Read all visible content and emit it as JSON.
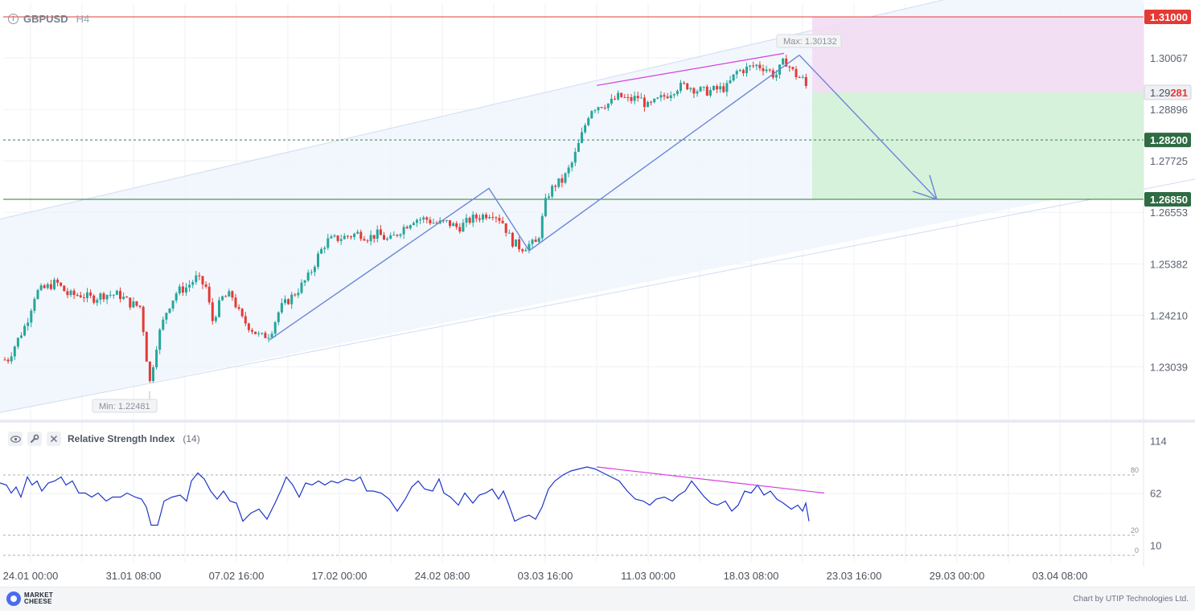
{
  "header": {
    "symbol": "GBPUSD",
    "timeframe": "H4"
  },
  "rsi_panel": {
    "name": "Relative Strength Index",
    "param": "(14)"
  },
  "footer": {
    "brand_line1": "MARKET",
    "brand_line2": "CHEESE",
    "credit": "Chart by UTIP Technologies Ltd."
  },
  "colors": {
    "up": "#26a69a",
    "down": "#e53935",
    "resistance": "#e53935",
    "support": "#2e7d32",
    "channel_fill": "#eef4fc",
    "wave": "#6a86d8",
    "divergence": "#d63fe0",
    "rsi_line": "#1f35c9",
    "sell_zone": "#f3dcf3",
    "target_zone": "#d3f1d6"
  },
  "chart_data": [
    {
      "type": "candlestick",
      "symbol": "GBPUSD",
      "timeframe": "H4",
      "x_ticks": [
        "24.01 00:00",
        "31.01 08:00",
        "07.02 16:00",
        "17.02 00:00",
        "24.02 08:00",
        "03.03 16:00",
        "11.03 00:00",
        "18.03 08:00",
        "23.03 16:00",
        "29.03 00:00",
        "03.04 08:00"
      ],
      "y_ticks": [
        "1.31000",
        "1.30067",
        "1.29281",
        "1.28896",
        "1.28200",
        "1.27725",
        "1.26850",
        "1.26553",
        "1.25382",
        "1.24210",
        "1.23039"
      ],
      "ylim": [
        1.22,
        1.312
      ],
      "grid": true,
      "close_path": [
        [
          0,
          1.2325
        ],
        [
          9,
          1.2318
        ],
        [
          20,
          1.2358
        ],
        [
          33,
          1.2404
        ],
        [
          44,
          1.2472
        ],
        [
          55,
          1.2482
        ],
        [
          70,
          1.2496
        ],
        [
          85,
          1.2467
        ],
        [
          100,
          1.2468
        ],
        [
          115,
          1.2459
        ],
        [
          130,
          1.2469
        ],
        [
          148,
          1.2468
        ],
        [
          162,
          1.2448
        ],
        [
          175,
          1.244
        ],
        [
          186,
          1.2265
        ],
        [
          196,
          1.2368
        ],
        [
          208,
          1.2436
        ],
        [
          220,
          1.2475
        ],
        [
          232,
          1.2485
        ],
        [
          244,
          1.2506
        ],
        [
          256,
          1.2486
        ],
        [
          264,
          1.2408
        ],
        [
          276,
          1.246
        ],
        [
          288,
          1.2468
        ],
        [
          300,
          1.2414
        ],
        [
          312,
          1.2392
        ],
        [
          324,
          1.2371
        ],
        [
          336,
          1.238
        ],
        [
          348,
          1.2436
        ],
        [
          360,
          1.2458
        ],
        [
          372,
          1.2482
        ],
        [
          384,
          1.251
        ],
        [
          396,
          1.2558
        ],
        [
          406,
          1.259
        ],
        [
          418,
          1.2595
        ],
        [
          432,
          1.2601
        ],
        [
          446,
          1.2608
        ],
        [
          458,
          1.2598
        ],
        [
          470,
          1.2606
        ],
        [
          484,
          1.259
        ],
        [
          498,
          1.2615
        ],
        [
          514,
          1.264
        ],
        [
          530,
          1.264
        ],
        [
          542,
          1.263
        ],
        [
          556,
          1.2632
        ],
        [
          570,
          1.262
        ],
        [
          586,
          1.264
        ],
        [
          600,
          1.2648
        ],
        [
          612,
          1.2656
        ],
        [
          624,
          1.2637
        ],
        [
          636,
          1.259
        ],
        [
          648,
          1.2574
        ],
        [
          658,
          1.2582
        ],
        [
          668,
          1.2585
        ],
        [
          680,
          1.2692
        ],
        [
          690,
          1.2718
        ],
        [
          700,
          1.2728
        ],
        [
          712,
          1.277
        ],
        [
          722,
          1.2823
        ],
        [
          734,
          1.289
        ],
        [
          746,
          1.29
        ],
        [
          758,
          1.2903
        ],
        [
          770,
          1.292
        ],
        [
          782,
          1.291
        ],
        [
          794,
          1.2918
        ],
        [
          806,
          1.2895
        ],
        [
          818,
          1.291
        ],
        [
          830,
          1.2924
        ],
        [
          842,
          1.294
        ],
        [
          854,
          1.2944
        ],
        [
          866,
          1.2934
        ],
        [
          878,
          1.293
        ],
        [
          892,
          1.2935
        ],
        [
          904,
          1.294
        ],
        [
          916,
          1.2975
        ],
        [
          928,
          1.2982
        ],
        [
          940,
          1.299
        ],
        [
          952,
          1.2984
        ],
        [
          964,
          1.2965
        ],
        [
          976,
          1.3002
        ],
        [
          988,
          1.297
        ],
        [
          998,
          1.2958
        ],
        [
          1006,
          1.2928
        ]
      ],
      "horizontal_lines": [
        {
          "label": "1.31000",
          "value": 1.31,
          "role": "resistance",
          "style": "solid"
        },
        {
          "label": "1.28200",
          "value": 1.282,
          "role": "intermediate",
          "style": "dashed"
        },
        {
          "label": "1.26850",
          "value": 1.2685,
          "role": "support",
          "style": "solid"
        }
      ],
      "current_price": {
        "label_main": "1.29",
        "label_accent": "281",
        "value": 1.29281
      },
      "annotations": [
        {
          "text": "Max: 1.30132",
          "value": 1.30132,
          "kind": "max"
        },
        {
          "text": "Min: 1.22481",
          "value": 1.22481,
          "kind": "min"
        }
      ],
      "zigzag": [
        [
          335,
          1.2365
        ],
        [
          608,
          1.271
        ],
        [
          658,
          1.2568
        ],
        [
          994,
          1.3013
        ]
      ],
      "forecast_arrow": [
        [
          994,
          1.3013
        ],
        [
          1165,
          1.2685
        ]
      ],
      "channel": {
        "upper": [
          [
            0,
            1.264
          ],
          [
            1200,
            1.315
          ]
        ],
        "lower": [
          [
            0,
            1.22
          ],
          [
            1486,
            1.2731
          ]
        ]
      },
      "trade_zones": [
        {
          "role": "sell",
          "from_value": 1.31,
          "to_value": 1.29281
        },
        {
          "role": "target",
          "from_value": 1.29281,
          "to_value": 1.2685
        }
      ],
      "divergence_line_price": [
        [
          742,
          1.2944
        ],
        [
          975,
          1.3017
        ]
      ]
    },
    {
      "type": "line",
      "name": "Relative Strength Index",
      "period": 14,
      "y_ticks": [
        "114",
        "62",
        "10"
      ],
      "levels": [
        {
          "label": "80",
          "value": 80
        },
        {
          "label": "20",
          "value": 20
        },
        {
          "label": "0",
          "value": 0
        }
      ],
      "ylim": [
        -6,
        122
      ],
      "series": [
        [
          0,
          72
        ],
        [
          8,
          70
        ],
        [
          14,
          62
        ],
        [
          20,
          68
        ],
        [
          26,
          58
        ],
        [
          34,
          78
        ],
        [
          40,
          70
        ],
        [
          46,
          74
        ],
        [
          52,
          64
        ],
        [
          60,
          72
        ],
        [
          68,
          74
        ],
        [
          76,
          78
        ],
        [
          82,
          70
        ],
        [
          90,
          74
        ],
        [
          98,
          62
        ],
        [
          106,
          62
        ],
        [
          114,
          58
        ],
        [
          122,
          62
        ],
        [
          132,
          54
        ],
        [
          140,
          58
        ],
        [
          150,
          58
        ],
        [
          158,
          62
        ],
        [
          168,
          58
        ],
        [
          176,
          56
        ],
        [
          182,
          48
        ],
        [
          188,
          30
        ],
        [
          196,
          30
        ],
        [
          204,
          54
        ],
        [
          214,
          58
        ],
        [
          224,
          60
        ],
        [
          232,
          54
        ],
        [
          238,
          74
        ],
        [
          246,
          82
        ],
        [
          254,
          76
        ],
        [
          262,
          64
        ],
        [
          270,
          56
        ],
        [
          278,
          64
        ],
        [
          286,
          54
        ],
        [
          294,
          52
        ],
        [
          302,
          34
        ],
        [
          312,
          42
        ],
        [
          322,
          46
        ],
        [
          332,
          36
        ],
        [
          342,
          52
        ],
        [
          350,
          66
        ],
        [
          356,
          78
        ],
        [
          364,
          70
        ],
        [
          372,
          58
        ],
        [
          380,
          72
        ],
        [
          388,
          70
        ],
        [
          396,
          74
        ],
        [
          404,
          70
        ],
        [
          412,
          74
        ],
        [
          420,
          72
        ],
        [
          430,
          76
        ],
        [
          440,
          74
        ],
        [
          448,
          78
        ],
        [
          456,
          64
        ],
        [
          464,
          64
        ],
        [
          474,
          62
        ],
        [
          484,
          56
        ],
        [
          494,
          44
        ],
        [
          504,
          56
        ],
        [
          512,
          68
        ],
        [
          520,
          74
        ],
        [
          528,
          66
        ],
        [
          538,
          64
        ],
        [
          546,
          76
        ],
        [
          552,
          62
        ],
        [
          560,
          58
        ],
        [
          570,
          50
        ],
        [
          578,
          62
        ],
        [
          588,
          52
        ],
        [
          596,
          60
        ],
        [
          604,
          62
        ],
        [
          612,
          66
        ],
        [
          620,
          56
        ],
        [
          626,
          64
        ],
        [
          632,
          52
        ],
        [
          640,
          34
        ],
        [
          650,
          38
        ],
        [
          658,
          40
        ],
        [
          666,
          36
        ],
        [
          674,
          48
        ],
        [
          682,
          66
        ],
        [
          690,
          74
        ],
        [
          700,
          80
        ],
        [
          710,
          84
        ],
        [
          720,
          86
        ],
        [
          730,
          88
        ],
        [
          740,
          86
        ],
        [
          750,
          82
        ],
        [
          760,
          78
        ],
        [
          770,
          74
        ],
        [
          780,
          64
        ],
        [
          790,
          56
        ],
        [
          800,
          54
        ],
        [
          808,
          50
        ],
        [
          816,
          56
        ],
        [
          826,
          58
        ],
        [
          836,
          54
        ],
        [
          844,
          60
        ],
        [
          852,
          64
        ],
        [
          860,
          74
        ],
        [
          868,
          66
        ],
        [
          876,
          58
        ],
        [
          884,
          52
        ],
        [
          892,
          50
        ],
        [
          902,
          54
        ],
        [
          910,
          44
        ],
        [
          918,
          50
        ],
        [
          926,
          64
        ],
        [
          934,
          62
        ],
        [
          942,
          70
        ],
        [
          950,
          60
        ],
        [
          958,
          64
        ],
        [
          966,
          56
        ],
        [
          974,
          52
        ],
        [
          984,
          46
        ],
        [
          992,
          50
        ],
        [
          998,
          44
        ],
        [
          1002,
          52
        ],
        [
          1006,
          34
        ]
      ],
      "divergence_line": [
        [
          742,
          88
        ],
        [
          1025,
          62
        ]
      ]
    }
  ]
}
